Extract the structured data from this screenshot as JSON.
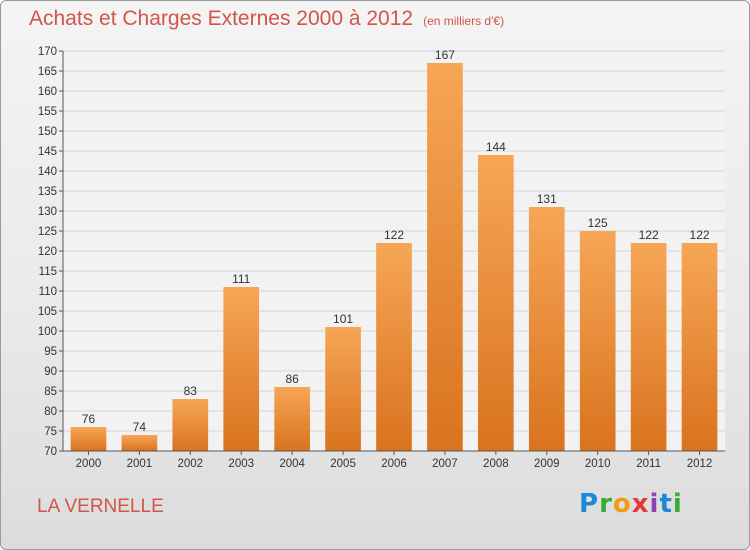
{
  "header": {
    "title": "Achats et Charges Externes 2000 à 2012",
    "unit": "(en milliers d'€)"
  },
  "footer": {
    "place": "LA VERNELLE",
    "logo_letters": [
      "P",
      "r",
      "o",
      "x",
      "i",
      "t",
      "i"
    ],
    "logo_colors": [
      "#1e88d6",
      "#3aaa35",
      "#f39c12",
      "#e53935",
      "#8e44ad",
      "#1e88d6",
      "#3aaa35"
    ]
  },
  "colors": {
    "bar_top": "#f6a656",
    "bar_bottom": "#d9731e",
    "title": "#d2554a"
  },
  "chart_data": {
    "type": "bar",
    "title": "Achats et Charges Externes 2000 à 2012",
    "subtitle": "(en milliers d'€)",
    "xlabel": "",
    "ylabel": "",
    "categories": [
      "2000",
      "2001",
      "2002",
      "2003",
      "2004",
      "2005",
      "2006",
      "2007",
      "2008",
      "2009",
      "2010",
      "2011",
      "2012"
    ],
    "values": [
      76,
      74,
      83,
      111,
      86,
      101,
      122,
      167,
      144,
      131,
      125,
      122,
      122
    ],
    "ylim": [
      70,
      170
    ],
    "yticks": [
      70,
      75,
      80,
      85,
      90,
      95,
      100,
      105,
      110,
      115,
      120,
      125,
      130,
      135,
      140,
      145,
      150,
      155,
      160,
      165,
      170
    ],
    "grid": true,
    "data_labels": true
  }
}
